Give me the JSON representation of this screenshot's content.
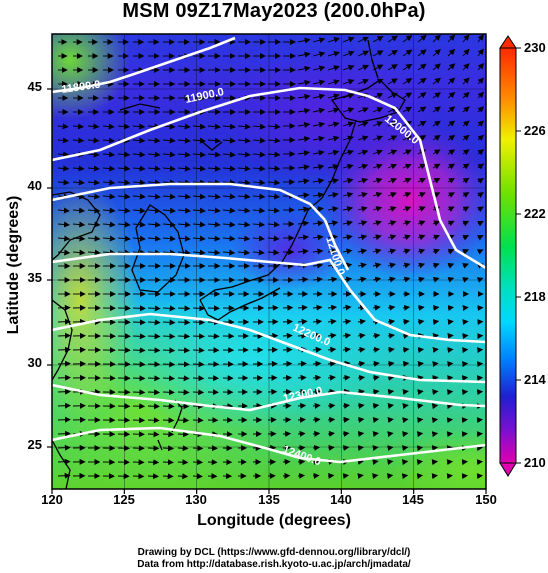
{
  "title": "MSM 09Z17May2023 (200.0hPa)",
  "x_axis": {
    "title": "Longitude (degrees)",
    "ticks": [
      "120",
      "125",
      "130",
      "135",
      "140",
      "145",
      "150"
    ]
  },
  "y_axis": {
    "title": "Latitude  (degrees)",
    "ticks": [
      "45",
      "40",
      "35",
      "30",
      "25"
    ]
  },
  "colorbar": {
    "labels": [
      "230",
      "226",
      "222",
      "218",
      "214",
      "210"
    ],
    "min": 210,
    "max": 230
  },
  "contour_labels": [
    "11800.0",
    "11900.0",
    "12000.0",
    "12100.0",
    "12200.0",
    "12300.0",
    "12400.0"
  ],
  "credits": {
    "line1": "Drawing by DCL (https://www.gfd-dennou.org/library/dcl/)",
    "line2": "Data from http://database.rish.kyoto-u.ac.jp/arch/jmadata/"
  },
  "colors": {
    "high": "#ff2a00",
    "mid_high": "#f0f000",
    "mid": "#00e050",
    "mid_low": "#00d8ff",
    "low": "#1f1fd0",
    "lowest": "#e000b0"
  }
}
